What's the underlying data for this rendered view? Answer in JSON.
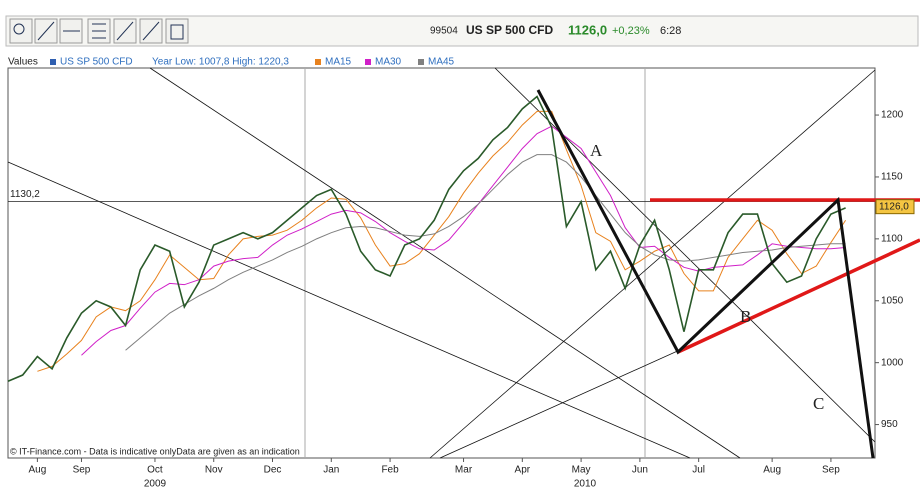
{
  "header": {
    "code": "99504",
    "name": "US SP 500 CFD",
    "price": "1126,0",
    "change": "+0,23%",
    "time": "6:28"
  },
  "chart_data": {
    "type": "line",
    "legend_title": "Values",
    "year_range": "Year Low: 1007,8 High: 1220,3",
    "footer": "© IT-Finance.com - Data is indicative onlyData are given as an indication",
    "years": [
      "2009",
      "2010"
    ],
    "annotations": [
      "A",
      "B",
      "C"
    ],
    "reference_line": {
      "value": 1130.2,
      "label": "1130,2"
    },
    "last_price": {
      "value": 1126.0,
      "label": "1126,0"
    },
    "categories": [
      null,
      null,
      "Aug",
      null,
      null,
      "Sep",
      null,
      null,
      null,
      null,
      "Oct",
      null,
      null,
      null,
      "Nov",
      null,
      null,
      null,
      "Dec",
      null,
      null,
      null,
      "Jan",
      null,
      null,
      null,
      "Feb",
      null,
      null,
      null,
      null,
      "Mar",
      null,
      null,
      null,
      "Apr",
      null,
      null,
      null,
      "May",
      null,
      null,
      null,
      "Jun",
      null,
      null,
      null,
      "Jul",
      null,
      null,
      null,
      null,
      "Aug",
      null,
      null,
      null,
      "Sep",
      null,
      null,
      null
    ],
    "series": [
      {
        "name": "US SP 500 CFD",
        "color": "#2a5a2a",
        "values": [
          985,
          990,
          1005,
          995,
          1020,
          1040,
          1050,
          1045,
          1030,
          1075,
          1095,
          1090,
          1045,
          1065,
          1095,
          1100,
          1105,
          1100,
          1105,
          1115,
          1125,
          1135,
          1140,
          1120,
          1090,
          1075,
          1070,
          1095,
          1100,
          1115,
          1140,
          1155,
          1165,
          1180,
          1190,
          1205,
          1215,
          1190,
          1110,
          1130,
          1075,
          1090,
          1060,
          1095,
          1115,
          1075,
          1025,
          1075,
          1075,
          1105,
          1120,
          1120,
          1080,
          1065,
          1070,
          1100,
          1120,
          1125,
          null,
          null
        ]
      },
      {
        "name": "MA15",
        "color": "#e8821e",
        "values": [
          null,
          null,
          993,
          997,
          1007,
          1018,
          1037,
          1045,
          1042,
          1050,
          1067,
          1087,
          1077,
          1067,
          1068,
          1087,
          1100,
          1102,
          1103,
          1107,
          1115,
          1125,
          1133,
          1132,
          1117,
          1095,
          1078,
          1080,
          1088,
          1103,
          1118,
          1137,
          1153,
          1167,
          1178,
          1192,
          1203,
          1203,
          1172,
          1143,
          1105,
          1098,
          1075,
          1082,
          1090,
          1095,
          1072,
          1058,
          1058,
          1085,
          1100,
          1115,
          1107,
          1088,
          1072,
          1078,
          1097,
          1115,
          null,
          null
        ]
      },
      {
        "name": "MA30",
        "color": "#d020c8",
        "values": [
          null,
          null,
          null,
          null,
          null,
          1006,
          1017,
          1026,
          1030,
          1044,
          1057,
          1064,
          1063,
          1067,
          1078,
          1082,
          1084,
          1085,
          1095,
          1103,
          1108,
          1114,
          1120,
          1123,
          1121,
          1114,
          1105,
          1098,
          1092,
          1091,
          1099,
          1113,
          1128,
          1143,
          1158,
          1173,
          1185,
          1191,
          1182,
          1173,
          1154,
          1135,
          1109,
          1093,
          1094,
          1085,
          1077,
          1074,
          1077,
          1078,
          1079,
          1087,
          1096,
          1094,
          1093,
          1092,
          1092,
          1093,
          null,
          null
        ]
      },
      {
        "name": "MA45",
        "color": "#808080",
        "values": [
          null,
          null,
          null,
          null,
          null,
          null,
          null,
          null,
          1010,
          1020,
          1030,
          1040,
          1047,
          1054,
          1060,
          1067,
          1073,
          1078,
          1083,
          1089,
          1094,
          1100,
          1105,
          1109,
          1110,
          1109,
          1106,
          1103,
          1102,
          1104,
          1110,
          1118,
          1128,
          1140,
          1152,
          1162,
          1168,
          1168,
          1162,
          1150,
          1135,
          1120,
          1105,
          1094,
          1087,
          1083,
          1082,
          1083,
          1085,
          1087,
          1089,
          1090,
          1091,
          1093,
          1094,
          1095,
          1096,
          1096,
          null,
          null
        ]
      }
    ],
    "ylim": [
      923,
      1238
    ],
    "yticks": [
      950,
      1000,
      1050,
      1100,
      1150,
      1200
    ],
    "grid": false
  }
}
